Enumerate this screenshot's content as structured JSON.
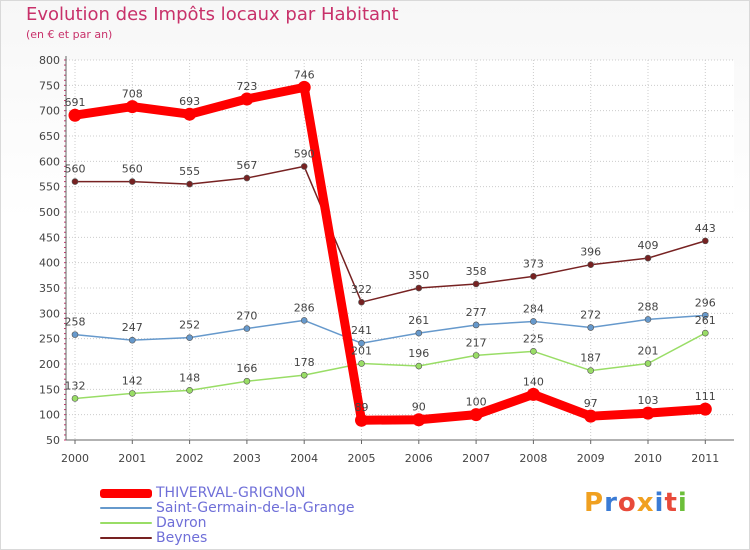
{
  "header": {
    "title": "Evolution des Impôts locaux par Habitant",
    "subtitle": "(en € et par an)"
  },
  "brand": "Proxiti",
  "colors": {
    "title": "#c8316a",
    "grid": "#cccccc",
    "legend_text": "#6f6fd8"
  },
  "chart_data": {
    "type": "line",
    "title": "Evolution des Impôts locaux par Habitant",
    "subtitle": "(en € et par an)",
    "xlabel": "",
    "ylabel": "",
    "x": [
      "2000",
      "2001",
      "2002",
      "2003",
      "2004",
      "2005",
      "2006",
      "2007",
      "2008",
      "2009",
      "2010",
      "2011"
    ],
    "y_ticks": [
      50,
      100,
      150,
      200,
      250,
      300,
      350,
      400,
      450,
      500,
      550,
      600,
      650,
      700,
      750,
      800
    ],
    "ylim": [
      50,
      800
    ],
    "grid": true,
    "legend": "bottom-left",
    "series": [
      {
        "name": "THIVERVAL-GRIGNON",
        "color": "#ff0000",
        "values": [
          691,
          708,
          693,
          723,
          746,
          89,
          90,
          100,
          140,
          97,
          103,
          111
        ]
      },
      {
        "name": "Saint-Germain-de-la-Grange",
        "color": "#6699cc",
        "values": [
          258,
          247,
          252,
          270,
          286,
          241,
          261,
          277,
          284,
          272,
          288,
          296
        ]
      },
      {
        "name": "Davron",
        "color": "#99dd66",
        "values": [
          132,
          142,
          148,
          166,
          178,
          201,
          196,
          217,
          225,
          187,
          201,
          261
        ]
      },
      {
        "name": "Beynes",
        "color": "#772222",
        "values": [
          560,
          560,
          555,
          567,
          590,
          322,
          350,
          358,
          373,
          396,
          409,
          443
        ]
      }
    ]
  }
}
